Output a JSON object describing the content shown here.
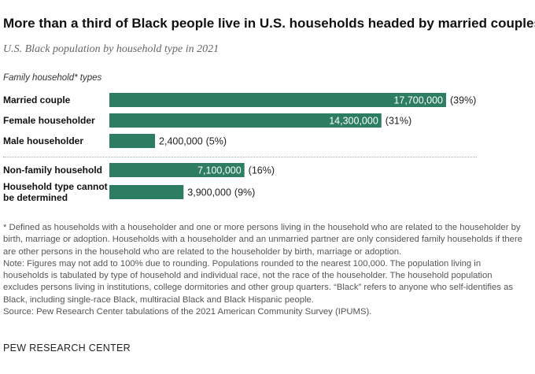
{
  "header": {
    "title": "More than a third of Black people live in U.S. households headed by married couples",
    "subtitle": "U.S. Black population by household type in 2021"
  },
  "chart_data": {
    "type": "bar",
    "orientation": "horizontal",
    "group_label": "Family household* types",
    "categories": [
      "Married couple",
      "Female householder",
      "Male householder",
      "Non-family household",
      "Household type cannot be determined"
    ],
    "category_lines": [
      [
        "Married couple"
      ],
      [
        "Female householder"
      ],
      [
        "Male householder"
      ],
      [
        "Non-family household"
      ],
      [
        "Household type cannot",
        "be determined"
      ]
    ],
    "values": [
      17700000,
      14300000,
      2400000,
      7100000,
      3900000
    ],
    "value_labels": [
      "17,700,000",
      "14,300,000",
      "2,400,000",
      "7,100,000",
      "3,900,000"
    ],
    "percent_labels": [
      "(39%)",
      "(31%)",
      "(5%)",
      "(16%)",
      "(9%)"
    ],
    "bar_color": "#2d7d63",
    "xlim": [
      0,
      17700000
    ]
  },
  "notes": {
    "definition": "* Defined as households with a householder and one or more persons living in the household who are related to the householder by birth, marriage or adoption. Households with a householder and an unmarried partner are only considered family households if there are other persons in the household who are related to the householder by birth, marriage or adoption.",
    "note": "Note: Figures may not add to 100% due to rounding. Populations rounded to the nearest 100,000. The population living in households is tabulated by type of household and individual race, not the race of the householder. The household population excludes persons living in institutions, college dormitories and other group quarters. “Black” refers to anyone who self-identifies as Black, including single-race Black, multiracial Black and Black Hispanic people.",
    "source": "Source: Pew Research Center tabulations of the 2021 American Community Survey (IPUMS)."
  },
  "brand": "PEW RESEARCH CENTER"
}
